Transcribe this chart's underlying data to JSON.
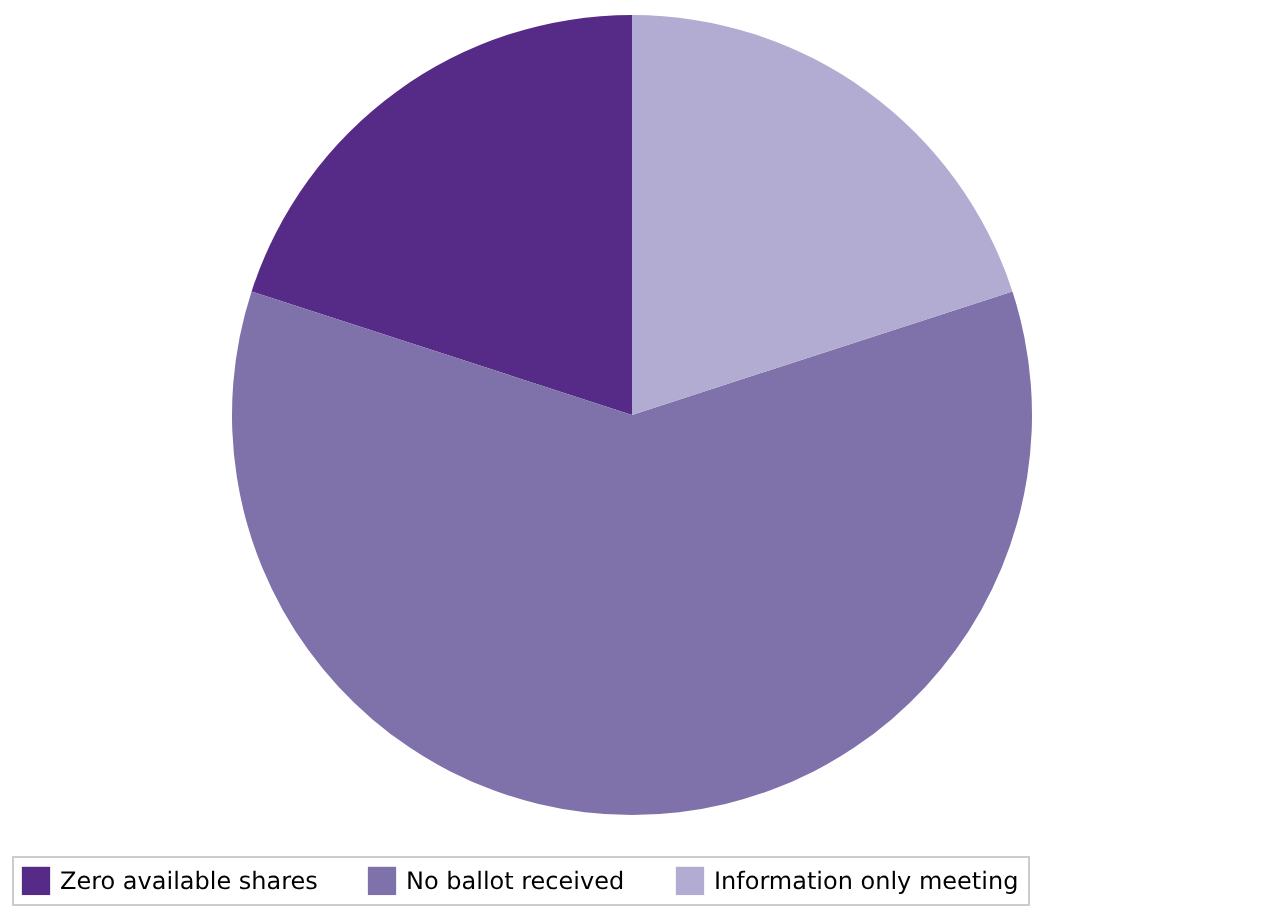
{
  "chart_data": {
    "type": "pie",
    "categories": [
      "Zero available shares",
      "No ballot received",
      "Information only meeting"
    ],
    "values": [
      20,
      60,
      20
    ],
    "colors": [
      "#562a87",
      "#7f72ab",
      "#b2abd2"
    ],
    "legend": "bottom"
  }
}
